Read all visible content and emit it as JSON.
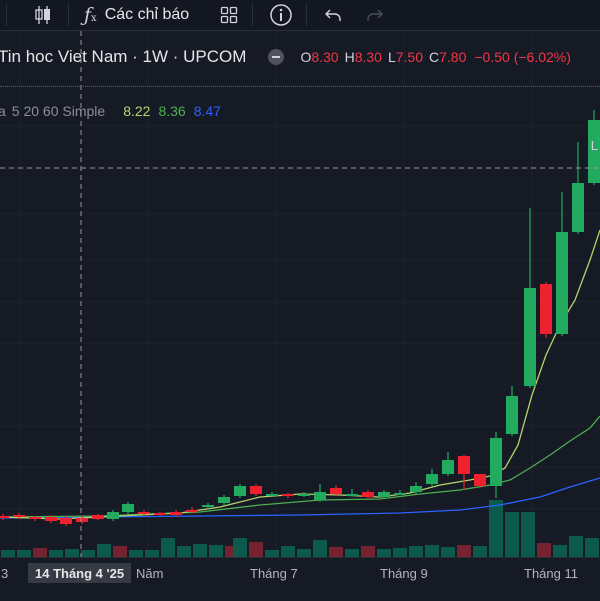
{
  "toolbar": {
    "indicators_label": "Các chỉ báo",
    "icons": [
      "candlestick-icon",
      "function-icon",
      "templates-grid-icon",
      "info-icon",
      "undo-icon",
      "redo-icon"
    ]
  },
  "legend": {
    "symbol": "Tin hoc Viet Nam · 1W · UPCOM",
    "o_label": "O",
    "o_value": "8.30",
    "h_label": "H",
    "h_value": "8.30",
    "l_label": "L",
    "l_value": "7.50",
    "c_label": "C",
    "c_value": "7.80",
    "change": "−0.50 (−6.02%)"
  },
  "ma": {
    "name_prefix": "a",
    "name": "5 20 60 Simple",
    "v1": "8.22",
    "v2": "8.36",
    "v3": "8.47"
  },
  "price_axis": {
    "partial_label": "L"
  },
  "xaxis": {
    "partial_left": "3",
    "crosshair_label": "14 Tháng 4 '25",
    "labels": [
      "Năm",
      "Tháng 7",
      "Tháng 9",
      "Tháng 11"
    ]
  },
  "colors": {
    "up": "#089981",
    "down": "#f23645",
    "ma5": "#b5d46a",
    "ma20": "#4caf50",
    "ma60": "#2962ff"
  }
}
